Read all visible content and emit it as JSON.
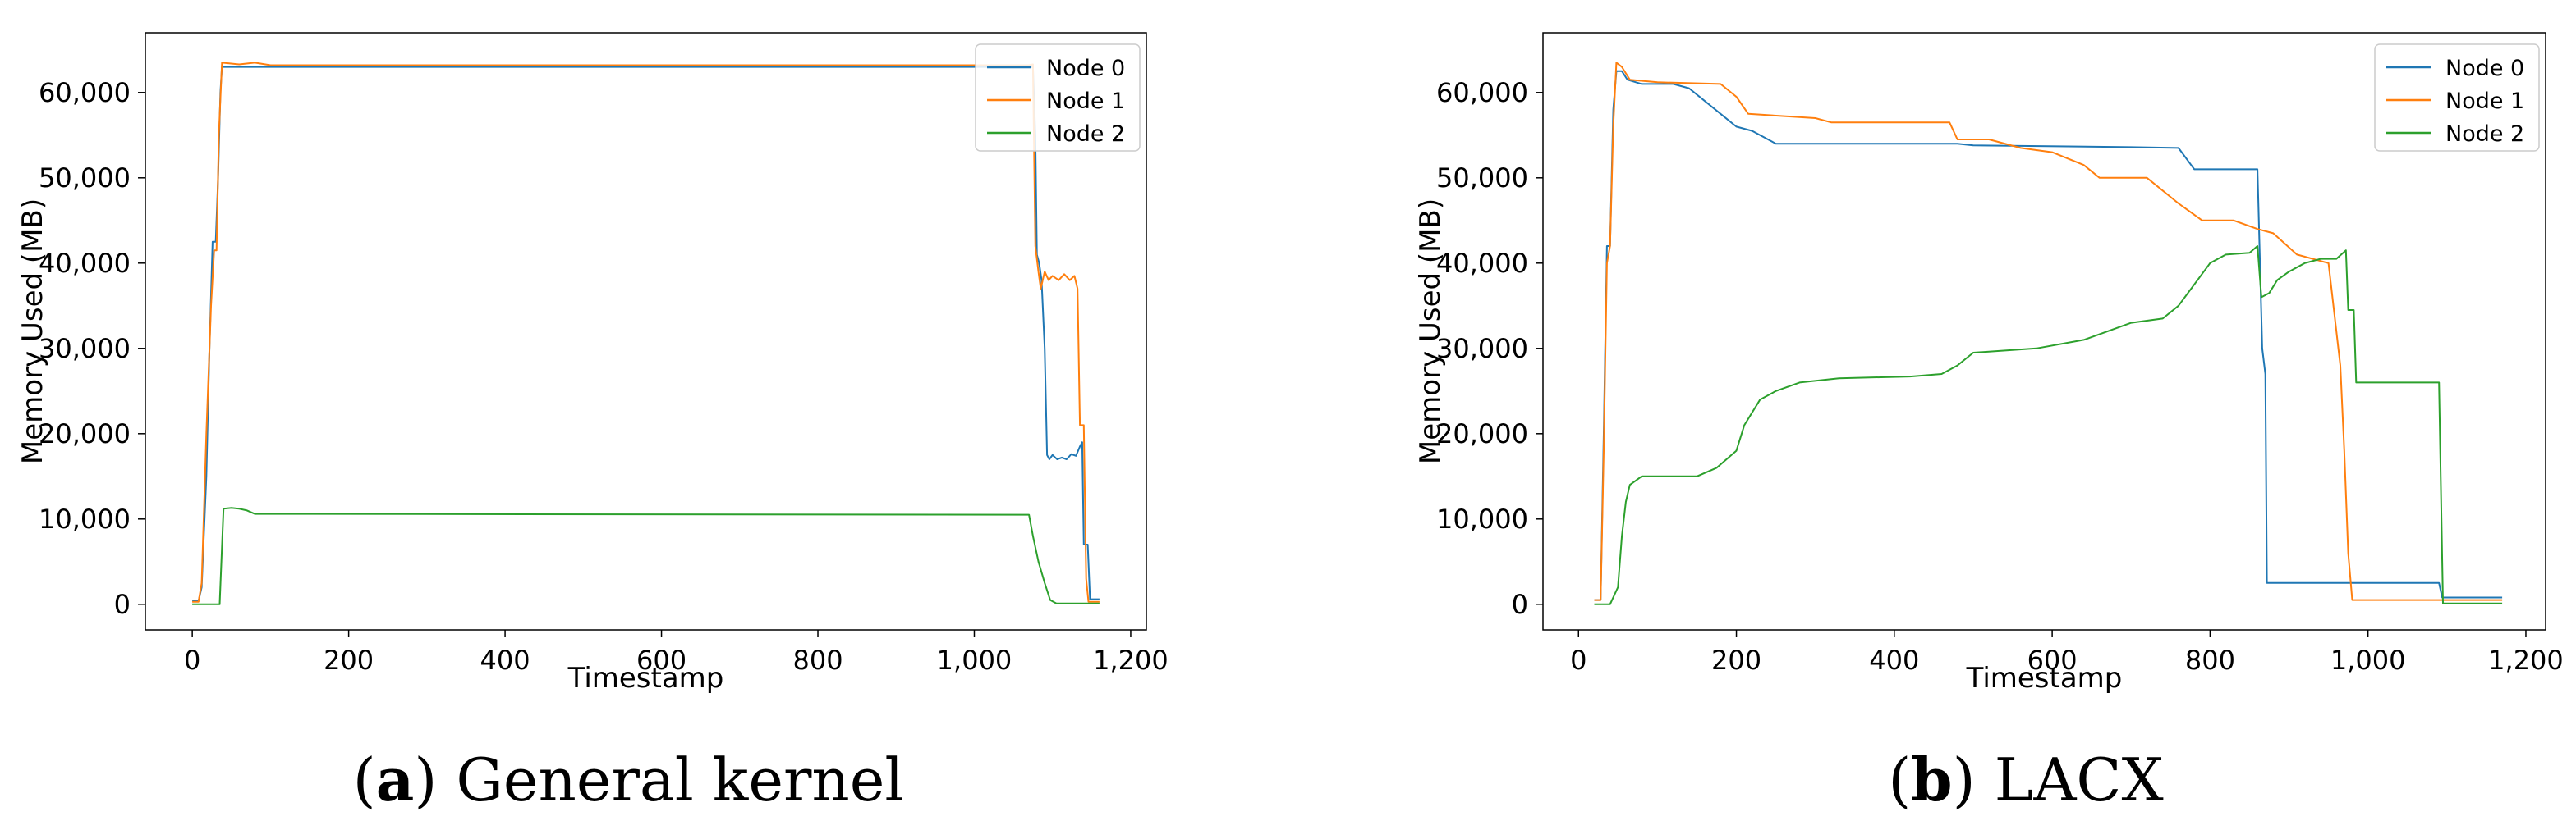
{
  "chart_data": [
    {
      "type": "line",
      "caption_letter": "a",
      "caption_text": "General kernel",
      "xlabel": "Timestamp",
      "ylabel": "Memory Used (MB)",
      "xlim": [
        -60,
        1220
      ],
      "ylim": [
        -3000,
        67000
      ],
      "xticks": [
        0,
        200,
        400,
        600,
        800,
        1000,
        1200
      ],
      "xtick_labels": [
        "0",
        "200",
        "400",
        "600",
        "800",
        "1,000",
        "1,200"
      ],
      "yticks": [
        0,
        10000,
        20000,
        30000,
        40000,
        50000,
        60000
      ],
      "ytick_labels": [
        "0",
        "10,000",
        "20,000",
        "30,000",
        "40,000",
        "50,000",
        "60,000"
      ],
      "legend_position": "top-right",
      "series": [
        {
          "name": "Node 0",
          "color": "#1f77b4",
          "points": [
            [
              0,
              400
            ],
            [
              8,
              400
            ],
            [
              12,
              2000
            ],
            [
              18,
              15000
            ],
            [
              22,
              30000
            ],
            [
              26,
              42500
            ],
            [
              30,
              42500
            ],
            [
              33,
              50000
            ],
            [
              36,
              60000
            ],
            [
              38,
              63000
            ],
            [
              1075,
              63000
            ],
            [
              1078,
              55000
            ],
            [
              1080,
              41000
            ],
            [
              1083,
              40000
            ],
            [
              1086,
              38000
            ],
            [
              1090,
              30000
            ],
            [
              1093,
              17500
            ],
            [
              1096,
              17000
            ],
            [
              1100,
              17500
            ],
            [
              1106,
              17000
            ],
            [
              1112,
              17200
            ],
            [
              1118,
              17000
            ],
            [
              1124,
              17600
            ],
            [
              1130,
              17400
            ],
            [
              1135,
              18500
            ],
            [
              1138,
              19000
            ],
            [
              1140,
              7000
            ],
            [
              1145,
              7000
            ],
            [
              1148,
              600
            ],
            [
              1160,
              600
            ]
          ]
        },
        {
          "name": "Node 1",
          "color": "#ff7f0e",
          "points": [
            [
              0,
              300
            ],
            [
              8,
              300
            ],
            [
              12,
              2500
            ],
            [
              18,
              20000
            ],
            [
              24,
              35000
            ],
            [
              28,
              41500
            ],
            [
              31,
              41500
            ],
            [
              34,
              55000
            ],
            [
              38,
              63500
            ],
            [
              60,
              63300
            ],
            [
              80,
              63500
            ],
            [
              100,
              63200
            ],
            [
              1070,
              63200
            ],
            [
              1075,
              63300
            ],
            [
              1078,
              42000
            ],
            [
              1082,
              39000
            ],
            [
              1085,
              37000
            ],
            [
              1090,
              39000
            ],
            [
              1095,
              38000
            ],
            [
              1100,
              38500
            ],
            [
              1108,
              38000
            ],
            [
              1115,
              38700
            ],
            [
              1122,
              38000
            ],
            [
              1128,
              38500
            ],
            [
              1132,
              37000
            ],
            [
              1135,
              21000
            ],
            [
              1140,
              21000
            ],
            [
              1143,
              3000
            ],
            [
              1146,
              300
            ],
            [
              1160,
              300
            ]
          ]
        },
        {
          "name": "Node 2",
          "color": "#2ca02c",
          "points": [
            [
              0,
              0
            ],
            [
              35,
              0
            ],
            [
              40,
              11200
            ],
            [
              50,
              11300
            ],
            [
              60,
              11200
            ],
            [
              70,
              11000
            ],
            [
              80,
              10600
            ],
            [
              1070,
              10500
            ],
            [
              1075,
              8000
            ],
            [
              1082,
              5000
            ],
            [
              1090,
              2500
            ],
            [
              1097,
              500
            ],
            [
              1105,
              100
            ],
            [
              1160,
              100
            ]
          ]
        }
      ]
    },
    {
      "type": "line",
      "caption_letter": "b",
      "caption_text": "LACX",
      "xlabel": "Timestamp",
      "ylabel": "Memory Used (MB)",
      "xlim": [
        -45,
        1225
      ],
      "ylim": [
        -3000,
        67000
      ],
      "xticks": [
        0,
        200,
        400,
        600,
        800,
        1000,
        1200
      ],
      "xtick_labels": [
        "0",
        "200",
        "400",
        "600",
        "800",
        "1,000",
        "1,200"
      ],
      "yticks": [
        0,
        10000,
        20000,
        30000,
        40000,
        50000,
        60000
      ],
      "ytick_labels": [
        "0",
        "10,000",
        "20,000",
        "30,000",
        "40,000",
        "50,000",
        "60,000"
      ],
      "legend_position": "top-right",
      "series": [
        {
          "name": "Node 0",
          "color": "#1f77b4",
          "points": [
            [
              20,
              500
            ],
            [
              28,
              500
            ],
            [
              32,
              20000
            ],
            [
              36,
              42000
            ],
            [
              40,
              42000
            ],
            [
              44,
              58000
            ],
            [
              48,
              62500
            ],
            [
              55,
              62500
            ],
            [
              62,
              61500
            ],
            [
              80,
              61000
            ],
            [
              120,
              61000
            ],
            [
              140,
              60500
            ],
            [
              160,
              59000
            ],
            [
              180,
              57500
            ],
            [
              200,
              56000
            ],
            [
              220,
              55500
            ],
            [
              250,
              54000
            ],
            [
              480,
              54000
            ],
            [
              500,
              53800
            ],
            [
              700,
              53600
            ],
            [
              760,
              53500
            ],
            [
              780,
              51000
            ],
            [
              830,
              51000
            ],
            [
              860,
              51000
            ],
            [
              866,
              30000
            ],
            [
              870,
              27000
            ],
            [
              872,
              2500
            ],
            [
              1090,
              2500
            ],
            [
              1094,
              800
            ],
            [
              1170,
              800
            ]
          ]
        },
        {
          "name": "Node 1",
          "color": "#ff7f0e",
          "points": [
            [
              20,
              500
            ],
            [
              28,
              500
            ],
            [
              32,
              18000
            ],
            [
              36,
              40000
            ],
            [
              40,
              42000
            ],
            [
              44,
              56000
            ],
            [
              48,
              63500
            ],
            [
              55,
              63000
            ],
            [
              65,
              61500
            ],
            [
              100,
              61200
            ],
            [
              180,
              61000
            ],
            [
              200,
              59500
            ],
            [
              215,
              57500
            ],
            [
              300,
              57000
            ],
            [
              320,
              56500
            ],
            [
              470,
              56500
            ],
            [
              480,
              54500
            ],
            [
              520,
              54500
            ],
            [
              560,
              53500
            ],
            [
              600,
              53000
            ],
            [
              640,
              51500
            ],
            [
              660,
              50000
            ],
            [
              720,
              50000
            ],
            [
              760,
              47000
            ],
            [
              790,
              45000
            ],
            [
              830,
              45000
            ],
            [
              860,
              44000
            ],
            [
              880,
              43500
            ],
            [
              910,
              41000
            ],
            [
              950,
              40000
            ],
            [
              965,
              28000
            ],
            [
              970,
              18000
            ],
            [
              975,
              6000
            ],
            [
              980,
              500
            ],
            [
              1170,
              500
            ]
          ]
        },
        {
          "name": "Node 2",
          "color": "#2ca02c",
          "points": [
            [
              20,
              0
            ],
            [
              40,
              0
            ],
            [
              50,
              2000
            ],
            [
              55,
              8000
            ],
            [
              60,
              12000
            ],
            [
              65,
              14000
            ],
            [
              80,
              15000
            ],
            [
              150,
              15000
            ],
            [
              175,
              16000
            ],
            [
              200,
              18000
            ],
            [
              210,
              21000
            ],
            [
              230,
              24000
            ],
            [
              250,
              25000
            ],
            [
              280,
              26000
            ],
            [
              330,
              26500
            ],
            [
              420,
              26700
            ],
            [
              460,
              27000
            ],
            [
              480,
              28000
            ],
            [
              500,
              29500
            ],
            [
              580,
              30000
            ],
            [
              640,
              31000
            ],
            [
              700,
              33000
            ],
            [
              740,
              33500
            ],
            [
              760,
              35000
            ],
            [
              780,
              37500
            ],
            [
              800,
              40000
            ],
            [
              820,
              41000
            ],
            [
              850,
              41200
            ],
            [
              860,
              42000
            ],
            [
              865,
              36000
            ],
            [
              875,
              36500
            ],
            [
              885,
              38000
            ],
            [
              900,
              39000
            ],
            [
              920,
              40000
            ],
            [
              940,
              40500
            ],
            [
              960,
              40500
            ],
            [
              972,
              41500
            ],
            [
              975,
              34500
            ],
            [
              982,
              34500
            ],
            [
              985,
              26000
            ],
            [
              1090,
              26000
            ],
            [
              1095,
              100
            ],
            [
              1170,
              100
            ]
          ]
        }
      ]
    }
  ]
}
